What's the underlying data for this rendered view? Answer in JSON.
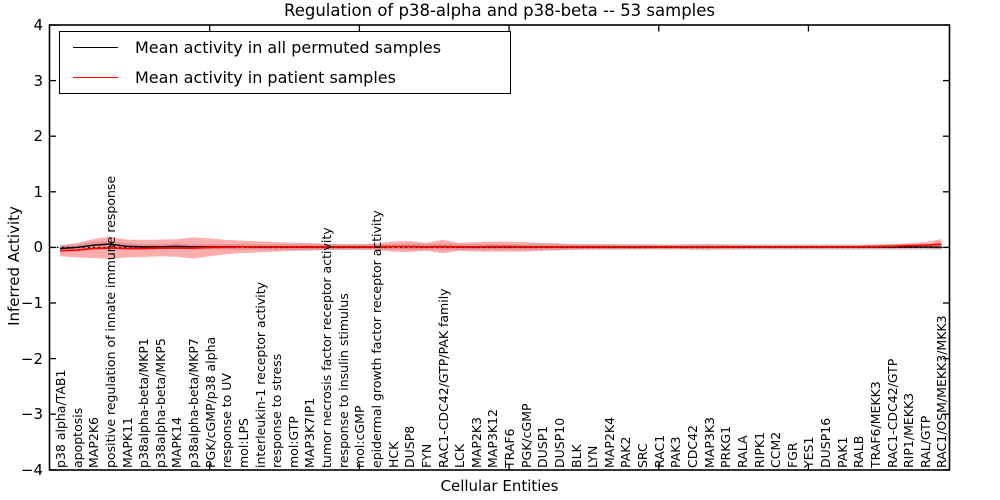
{
  "chart_data": {
    "type": "line",
    "title": "Regulation of p38-alpha and p38-beta -- 53 samples",
    "xlabel": "Cellular Entities",
    "ylabel": "Inferred Activity",
    "ylim": [
      -4,
      4
    ],
    "yticks": [
      -4,
      -3,
      -2,
      -1,
      0,
      1,
      2,
      3,
      4
    ],
    "grid": false,
    "legend_position": "upper left",
    "reference_line": {
      "y": 0,
      "style": "dotted",
      "color": "#000000"
    },
    "categories": [
      "p38 alpha/TAB1",
      "apoptosis",
      "MAP2K6",
      "positive regulation of innate immune response",
      "MAPK11",
      "p38alpha-beta/MKP1",
      "p38alpha-beta/MKP5",
      "MAPK14",
      "p38alpha-beta/MKP7",
      "PGK/cGMP/p38 alpha",
      "response to UV",
      "mol:LPS",
      "interleukin-1 receptor activity",
      "response to stress",
      "mol:GTP",
      "MAP3K7IP1",
      "tumor necrosis factor receptor activity",
      "response to insulin stimulus",
      "mol:cGMP",
      "epidermal growth factor receptor activity",
      "HCK",
      "DUSP8",
      "FYN",
      "RAC1-CDC42/GTP/PAK family",
      "LCK",
      "MAP2K3",
      "MAP3K12",
      "TRAF6",
      "PGK/cGMP",
      "DUSP1",
      "DUSP10",
      "BLK",
      "LYN",
      "MAP2K4",
      "PAK2",
      "SRC",
      "RAC1",
      "PAK3",
      "CDC42",
      "MAP3K3",
      "PRKG1",
      "RALA",
      "RIPK1",
      "CCM2",
      "FGR",
      "YES1",
      "DUSP16",
      "PAK1",
      "RALB",
      "TRAF6/MEKK3",
      "RAC1-CDC42/GTP",
      "RIP1/MEKK3",
      "RAL/GTP",
      "RAC1/OSM/MEKK3/MKK3"
    ],
    "series": [
      {
        "name": "Mean activity in all permuted samples",
        "color": "#000000",
        "band_color": "#bbbbbb",
        "band_opacity": 0.55,
        "values": [
          -0.02,
          0.0,
          0.04,
          0.06,
          0.02,
          0.01,
          0.01,
          0.02,
          0.01,
          0.01,
          0.01,
          0.01,
          0.005,
          0.005,
          0.005,
          0.005,
          0.005,
          0.005,
          0.005,
          0.005,
          0.01,
          0.01,
          0.005,
          0.01,
          0.005,
          0.005,
          0.005,
          0.005,
          0.005,
          0.005,
          0.005,
          0.005,
          0.005,
          0.005,
          0.005,
          0.005,
          0.005,
          0.005,
          0.005,
          0.005,
          0.005,
          0.005,
          0.005,
          0.005,
          0.005,
          0.005,
          0.005,
          0.005,
          0.005,
          0.005,
          0.005,
          0.005,
          0.005,
          0.005
        ],
        "band_halfwidth": [
          0.05,
          0.05,
          0.055,
          0.06,
          0.055,
          0.05,
          0.05,
          0.05,
          0.05,
          0.05,
          0.05,
          0.05,
          0.05,
          0.05,
          0.05,
          0.05,
          0.05,
          0.05,
          0.05,
          0.05,
          0.05,
          0.055,
          0.05,
          0.055,
          0.05,
          0.05,
          0.05,
          0.05,
          0.05,
          0.05,
          0.05,
          0.05,
          0.05,
          0.05,
          0.05,
          0.05,
          0.05,
          0.05,
          0.055,
          0.06,
          0.055,
          0.05,
          0.05,
          0.05,
          0.05,
          0.05,
          0.05,
          0.05,
          0.05,
          0.05,
          0.05,
          0.05,
          0.05,
          0.05
        ]
      },
      {
        "name": "Mean activity in patient samples",
        "color": "#ff0000",
        "band_color": "#ff0000",
        "band_opacity": 0.32,
        "values": [
          -0.06,
          -0.05,
          -0.02,
          -0.01,
          -0.02,
          -0.02,
          -0.01,
          -0.01,
          -0.01,
          0.0,
          0.005,
          0.01,
          0.01,
          0.01,
          0.01,
          0.01,
          0.01,
          0.01,
          0.01,
          0.01,
          0.015,
          0.015,
          0.01,
          0.015,
          0.01,
          0.01,
          0.015,
          0.015,
          0.01,
          0.01,
          0.01,
          0.01,
          0.01,
          0.01,
          0.01,
          0.01,
          0.01,
          0.01,
          0.01,
          0.01,
          0.01,
          0.01,
          0.01,
          0.01,
          0.01,
          0.01,
          0.01,
          0.01,
          0.01,
          0.015,
          0.02,
          0.03,
          0.04,
          0.06
        ],
        "band_halfwidth": [
          0.1,
          0.13,
          0.17,
          0.2,
          0.16,
          0.155,
          0.15,
          0.16,
          0.19,
          0.16,
          0.13,
          0.11,
          0.1,
          0.085,
          0.075,
          0.065,
          0.055,
          0.05,
          0.05,
          0.055,
          0.09,
          0.1,
          0.07,
          0.12,
          0.07,
          0.085,
          0.09,
          0.09,
          0.085,
          0.07,
          0.06,
          0.05,
          0.045,
          0.045,
          0.04,
          0.04,
          0.035,
          0.035,
          0.04,
          0.04,
          0.035,
          0.035,
          0.03,
          0.03,
          0.03,
          0.03,
          0.03,
          0.03,
          0.03,
          0.035,
          0.04,
          0.045,
          0.055,
          0.09
        ]
      }
    ]
  }
}
